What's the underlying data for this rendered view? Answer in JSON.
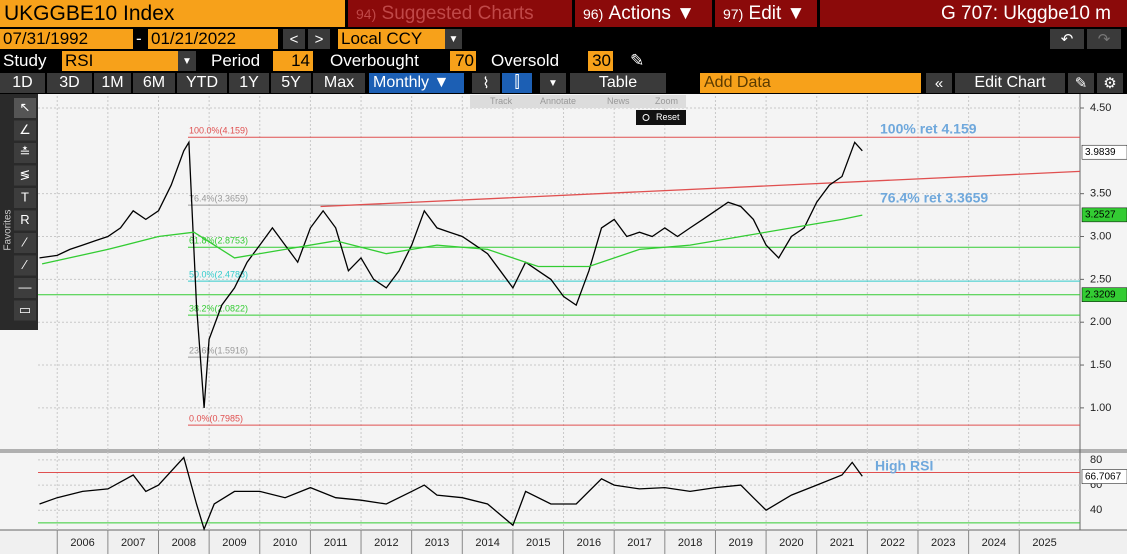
{
  "header": {
    "ticker": "UKGGBE10 Index",
    "menu": [
      {
        "num": "94)",
        "label": "Suggested Charts"
      },
      {
        "num": "96)",
        "label": "Actions ▼"
      },
      {
        "num": "97)",
        "label": "Edit ▼"
      }
    ],
    "page_code": "G 707: Ukggbe10 m"
  },
  "controls": {
    "start_date": "07/31/1992",
    "end_date": "01/21/2022",
    "currency": "Local CCY",
    "study_label": "Study",
    "study": "RSI",
    "period_label": "Period",
    "period": 14,
    "overbought_label": "Overbought",
    "overbought": 70,
    "oversold_label": "Oversold",
    "oversold": 30,
    "ranges": [
      "1D",
      "3D",
      "1M",
      "6M",
      "YTD",
      "1Y",
      "5Y",
      "Max"
    ],
    "frequency": "Monthly ▼",
    "table": "Table",
    "add_data": "Add Data",
    "edit_chart": "Edit Chart"
  },
  "toolbar": {
    "items": [
      "Track",
      "Annotate",
      "News",
      "Zoom"
    ],
    "reset": "Reset"
  },
  "sidebar_label": "Favorites",
  "chart_data": [
    {
      "type": "line",
      "xlim": [
        2005.62,
        2026.2
      ],
      "xticks": [
        2006,
        2007,
        2008,
        2009,
        2010,
        2011,
        2012,
        2013,
        2014,
        2015,
        2016,
        2017,
        2018,
        2019,
        2020,
        2021,
        2022,
        2023,
        2024,
        2025
      ],
      "ylim": [
        0.52,
        4.64
      ],
      "yticks": [
        {
          "value": 4.5,
          "label": "4.50"
        },
        {
          "value": 3.5,
          "label": "3.50"
        },
        {
          "value": 3,
          "label": "3.00"
        },
        {
          "value": 2.5,
          "label": "2.50"
        },
        {
          "value": 2,
          "label": "2.00"
        },
        {
          "value": 1.5,
          "label": "1.50"
        },
        {
          "value": 1,
          "label": "1.00"
        }
      ],
      "series": [
        {
          "color": "#000000",
          "x": [
            2005.65,
            2006,
            2006.25,
            2006.5,
            2006.75,
            2007,
            2007.25,
            2007.5,
            2007.75,
            2008,
            2008.25,
            2008.5,
            2008.6,
            2008.75,
            2008.9,
            2009,
            2009.25,
            2009.5,
            2009.75,
            2010,
            2010.25,
            2010.5,
            2010.75,
            2011,
            2011.25,
            2011.5,
            2011.75,
            2012,
            2012.25,
            2012.5,
            2012.75,
            2013,
            2013.25,
            2013.5,
            2013.75,
            2014,
            2014.25,
            2014.5,
            2014.75,
            2015,
            2015.25,
            2015.5,
            2015.75,
            2016,
            2016.25,
            2016.5,
            2016.75,
            2017,
            2017.25,
            2017.5,
            2017.75,
            2018,
            2018.25,
            2018.5,
            2018.75,
            2019,
            2019.25,
            2019.5,
            2019.75,
            2020,
            2020.25,
            2020.5,
            2020.75,
            2021,
            2021.25,
            2021.5,
            2021.75,
            2021.9
          ],
          "values": [
            2.75,
            2.78,
            2.85,
            2.9,
            2.95,
            3.0,
            3.1,
            3.3,
            3.2,
            3.3,
            3.6,
            4.0,
            4.1,
            2.2,
            1.0,
            1.8,
            2.2,
            2.4,
            2.7,
            2.9,
            3.1,
            2.9,
            2.7,
            3.1,
            3.3,
            3.1,
            2.6,
            2.75,
            2.5,
            2.4,
            2.6,
            2.9,
            3.3,
            3.1,
            3.05,
            3.0,
            2.9,
            2.8,
            2.6,
            2.4,
            2.7,
            2.6,
            2.5,
            2.3,
            2.2,
            2.6,
            3.1,
            3.2,
            3.0,
            3.05,
            3.0,
            3.1,
            3.0,
            3.1,
            3.2,
            3.3,
            3.4,
            3.35,
            3.2,
            2.9,
            2.75,
            3.0,
            3.1,
            3.4,
            3.6,
            3.7,
            4.1,
            4.0
          ]
        },
        {
          "color": "#33cc33",
          "x": [
            2005.7,
            2007,
            2008,
            2008.7,
            2009.5,
            2010.5,
            2011.5,
            2012.5,
            2013.5,
            2014.5,
            2015.5,
            2016.5,
            2017.5,
            2018.5,
            2019.5,
            2020.5,
            2021.5,
            2021.9
          ],
          "values": [
            2.68,
            2.85,
            3.0,
            3.05,
            2.75,
            2.85,
            2.95,
            2.8,
            2.9,
            2.85,
            2.65,
            2.65,
            2.85,
            2.9,
            3.0,
            3.1,
            3.2,
            3.25
          ]
        }
      ],
      "levels": [
        {
          "value": 4.159,
          "label": "100.0%(4.159)",
          "color": "#e05050"
        },
        {
          "value": 3.3659,
          "label": "76.4%(3.3659)",
          "color": "#999999"
        },
        {
          "value": 2.8753,
          "label": "61.8%(2.8753)",
          "color": "#33cc33"
        },
        {
          "value": 2.4788,
          "label": "50.0%(2.4788)",
          "color": "#33cccc"
        },
        {
          "value": 2.0822,
          "label": "38.2%(2.0822)",
          "color": "#33cc33"
        },
        {
          "value": 1.5916,
          "label": "23.6%(1.5916)",
          "color": "#999999"
        },
        {
          "value": 0.7985,
          "label": "0.0%(0.7985)",
          "color": "#e05050"
        }
      ],
      "trendline": {
        "color": "#e05050",
        "x": [
          2011.2,
          2026.2
        ],
        "values": [
          3.35,
          3.76
        ]
      },
      "price_labels": [
        {
          "value": 3.9839,
          "color": "#ffffff",
          "line": false
        },
        {
          "value": 3.2527,
          "color": "#33cc33",
          "line": false
        },
        {
          "value": 2.3209,
          "color": "#33cc33",
          "line": true
        }
      ],
      "annotations": [
        "100% ret 4.159",
        "76.4% ret 3.3659"
      ]
    },
    {
      "type": "line",
      "ylim": [
        24.3,
        85.5
      ],
      "yticks": [
        80,
        60,
        40
      ],
      "series": [
        {
          "color": "#000000",
          "x": [
            2005.65,
            2006,
            2006.5,
            2007,
            2007.5,
            2007.75,
            2008,
            2008.5,
            2008.75,
            2008.9,
            2009.1,
            2009.5,
            2010,
            2010.5,
            2011,
            2011.5,
            2012,
            2012.5,
            2013,
            2013.25,
            2013.5,
            2014,
            2014.5,
            2015,
            2015.25,
            2015.75,
            2016.25,
            2016.75,
            2017,
            2017.5,
            2018,
            2018.5,
            2019,
            2019.5,
            2019.75,
            2020,
            2020.5,
            2021,
            2021.5,
            2021.7,
            2021.9
          ],
          "values": [
            45,
            50,
            55,
            57,
            68,
            55,
            60,
            82,
            45,
            25,
            45,
            55,
            55,
            50,
            58,
            50,
            48,
            45,
            55,
            60,
            52,
            50,
            45,
            28,
            55,
            45,
            45,
            65,
            60,
            57,
            58,
            55,
            58,
            60,
            50,
            40,
            52,
            60,
            68,
            78,
            67
          ]
        }
      ],
      "last_value": 66.7067,
      "annotation": "High RSI"
    }
  ]
}
